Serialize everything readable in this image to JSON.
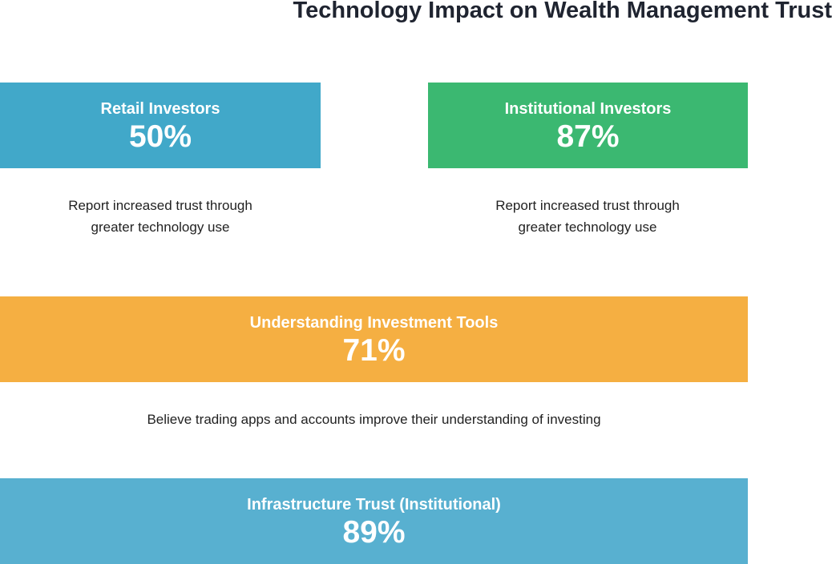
{
  "title": "Technology Impact on Wealth Management Trust",
  "cards": [
    {
      "label": "Retail Investors",
      "value": "50%",
      "description": "Report increased trust through greater technology use"
    },
    {
      "label": "Institutional Investors",
      "value": "87%",
      "description": "Report increased trust through greater technology use"
    },
    {
      "label": "Understanding Investment Tools",
      "value": "71%",
      "description": "Believe trading apps and accounts improve their understanding of investing"
    },
    {
      "label": "Infrastructure Trust (Institutional)",
      "value": "89%"
    }
  ]
}
